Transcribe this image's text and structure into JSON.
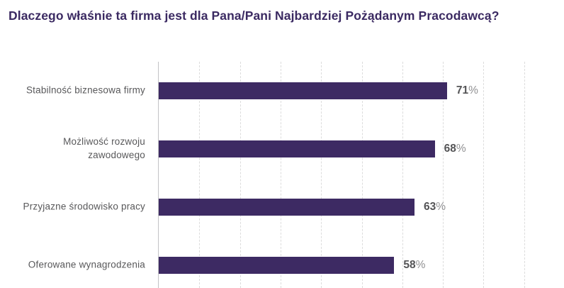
{
  "title": "Dlaczego właśnie ta firma jest dla Pana/Pani Najbardziej Pożądanym Pracodawcą?",
  "chart_data": {
    "type": "bar",
    "orientation": "horizontal",
    "title": "Dlaczego właśnie ta firma jest dla Pana/Pani Najbardziej Pożądanym Pracodawcą?",
    "categories": [
      "Stabilność biznesowa firmy",
      "Możliwość rozwoju zawodowego",
      "Przyjazne środowisko pracy",
      "Oferowane wynagrodzenia"
    ],
    "category_lines": [
      [
        "Stabilność biznesowa firmy"
      ],
      [
        "Możliwość rozwoju",
        "zawodowego"
      ],
      [
        "Przyjazne środowisko pracy"
      ],
      [
        "Oferowane wynagrodzenia"
      ]
    ],
    "values": [
      71,
      68,
      63,
      58
    ],
    "unit": "%",
    "value_labels": [
      "71%",
      "68%",
      "63%",
      "58%"
    ],
    "xlabel": "",
    "ylabel": "",
    "xlim": [
      0,
      100
    ],
    "gridline_step": 10,
    "grid": "vertical-dashed",
    "legend": "none",
    "colors": {
      "background": "#ffffff",
      "bar": "#3d2a63",
      "title": "#3b2a62",
      "category_label": "#58585a",
      "value_number": "#545456",
      "value_unit": "#909092",
      "gridline": "#dcdcdc",
      "axis_line": "#c3c3c5"
    }
  }
}
